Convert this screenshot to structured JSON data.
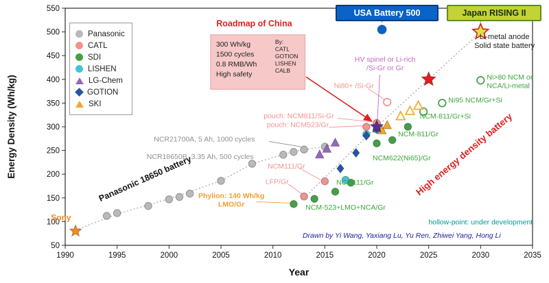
{
  "badges": {
    "usa": {
      "label": "USA Battery 500",
      "bg": "#0a63c6",
      "border": "#063a78",
      "text": "#ffffff"
    },
    "japan": {
      "label": "Japan RISING II",
      "bg": "#c3d235",
      "border": "#5a8f1d",
      "text": "#17310a"
    }
  },
  "chart_data": {
    "type": "scatter",
    "xlabel": "Year",
    "ylabel": "Energy Density (Wh/kg)",
    "xlim": [
      1990,
      2035
    ],
    "ylim": [
      50,
      550
    ],
    "x_ticks": [
      1990,
      1995,
      2000,
      2005,
      2010,
      2015,
      2020,
      2025,
      2030,
      2035
    ],
    "y_ticks": [
      50,
      100,
      150,
      200,
      250,
      300,
      350,
      400,
      450,
      500,
      550
    ],
    "grid": false,
    "legend": {
      "position": "top-left",
      "items": [
        {
          "label": "Panasonic",
          "marker": "circle",
          "color": "#b9b9b9"
        },
        {
          "label": "CATL",
          "marker": "circle",
          "color": "#f2938e"
        },
        {
          "label": "SDI",
          "marker": "circle",
          "color": "#43a047"
        },
        {
          "label": "LISHEN",
          "marker": "circle",
          "color": "#40c4d9"
        },
        {
          "label": "LG-Chem",
          "marker": "triangle",
          "color": "#9468bd"
        },
        {
          "label": "GOTION",
          "marker": "diamond",
          "color": "#2456a4"
        },
        {
          "label": "SKI",
          "marker": "triangle",
          "color": "#f0a832"
        }
      ]
    },
    "series": [
      {
        "name": "Panasonic",
        "marker": "circle",
        "color": "#b9b9b9",
        "fill": "solid",
        "points": [
          [
            1994,
            112
          ],
          [
            1995,
            118
          ],
          [
            1998,
            133
          ],
          [
            2000,
            147
          ],
          [
            2001,
            152
          ],
          [
            2002,
            159
          ],
          [
            2005,
            186
          ],
          [
            2008,
            222
          ],
          [
            2011,
            241
          ],
          [
            2012,
            247
          ],
          [
            2013,
            252
          ],
          [
            2015,
            258
          ]
        ]
      },
      {
        "name": "CATL",
        "marker": "circle",
        "color": "#f2938e",
        "fill": "solid",
        "points": [
          [
            2013,
            153
          ],
          [
            2015,
            185
          ],
          [
            2019,
            300
          ],
          [
            2020,
            308
          ]
        ]
      },
      {
        "name": "CATL under development",
        "marker": "circle",
        "color": "#f2938e",
        "fill": "hollow",
        "points": [
          [
            2021,
            352
          ]
        ]
      },
      {
        "name": "SDI",
        "marker": "circle",
        "color": "#43a047",
        "fill": "solid",
        "points": [
          [
            2012,
            137
          ],
          [
            2014,
            148
          ],
          [
            2016,
            163
          ],
          [
            2017.5,
            182
          ],
          [
            2020,
            265
          ],
          [
            2021.5,
            272
          ],
          [
            2023,
            300
          ]
        ]
      },
      {
        "name": "SDI under development",
        "marker": "circle",
        "color": "#43a047",
        "fill": "hollow",
        "points": [
          [
            2024.5,
            332
          ],
          [
            2026.3,
            350
          ],
          [
            2030,
            398
          ]
        ]
      },
      {
        "name": "LISHEN",
        "marker": "circle",
        "color": "#40c4d9",
        "fill": "solid",
        "points": [
          [
            2017,
            188
          ],
          [
            2019,
            284
          ],
          [
            2020,
            294
          ]
        ]
      },
      {
        "name": "LG-Chem",
        "marker": "triangle",
        "color": "#9468bd",
        "fill": "solid",
        "points": [
          [
            2014.5,
            241
          ],
          [
            2015.2,
            253
          ],
          [
            2016,
            266
          ]
        ]
      },
      {
        "name": "GOTION",
        "marker": "diamond",
        "color": "#2456a4",
        "fill": "solid",
        "points": [
          [
            2016.5,
            212
          ],
          [
            2018,
            245
          ],
          [
            2019,
            281
          ],
          [
            2020,
            296
          ]
        ]
      },
      {
        "name": "SKI",
        "marker": "triangle",
        "color": "#f0a832",
        "fill": "solid",
        "points": [
          [
            2020.5,
            292
          ],
          [
            2021,
            303
          ]
        ]
      },
      {
        "name": "SKI under development",
        "marker": "triangle",
        "color": "#f0a832",
        "fill": "hollow",
        "points": [
          [
            2022.3,
            322
          ],
          [
            2023.2,
            333
          ],
          [
            2024,
            344
          ]
        ]
      },
      {
        "name": "Sony first Li-ion",
        "marker": "star",
        "color": "#f08a24",
        "fill": "solid",
        "size": 9,
        "points": [
          [
            1991,
            80
          ]
        ]
      },
      {
        "name": "China roadmap 2020 target",
        "marker": "star",
        "color": "#5d2f91",
        "fill": "solid",
        "size": 10,
        "points": [
          [
            2020,
            300
          ]
        ]
      },
      {
        "name": "China roadmap 2025 target",
        "marker": "star",
        "color": "#e01f1f",
        "fill": "solid",
        "size": 11,
        "points": [
          [
            2025,
            400
          ]
        ]
      },
      {
        "name": "Japan RISING II target",
        "marker": "star",
        "color": "#dce24a",
        "stroke": "#d42020",
        "fill": "solid",
        "size": 12,
        "points": [
          [
            2030,
            500
          ]
        ]
      },
      {
        "name": "USA Battery 500 target",
        "marker": "circle",
        "color": "#0a63c6",
        "fill": "solid",
        "size": 6.5,
        "points": [
          [
            2020.5,
            505
          ]
        ]
      }
    ],
    "trend_lines": [
      {
        "name": "panasonic-18650-trend",
        "color": "#aaaaaa",
        "style": "dotted",
        "points": [
          [
            1991,
            82
          ],
          [
            1995,
            116
          ],
          [
            2000,
            148
          ],
          [
            2005,
            186
          ],
          [
            2008,
            222
          ],
          [
            2012,
            248
          ],
          [
            2016,
            262
          ]
        ]
      },
      {
        "name": "high-energy-density-trend",
        "color": "#aaaaaa",
        "style": "dotted",
        "points": [
          [
            2013,
            150
          ],
          [
            2020,
            300
          ],
          [
            2025,
            400
          ],
          [
            2030,
            500
          ]
        ]
      },
      {
        "name": "usa-badge-connector",
        "color": "#0a63c6",
        "style": "dashed",
        "points": [
          [
            2020.5,
            528
          ],
          [
            2020.5,
            513
          ]
        ]
      },
      {
        "name": "japan-badge-connector",
        "color": "#8aa22a",
        "style": "dashed",
        "points": [
          [
            2030,
            528
          ],
          [
            2030,
            512
          ]
        ]
      }
    ],
    "leaders": [
      {
        "color": "#8f8f8f",
        "from": [
          2009.6,
          269
        ],
        "to": [
          2012.7,
          258
        ]
      },
      {
        "color": "#f2938e",
        "from": [
          2016.2,
          318
        ],
        "to": [
          2019.6,
          310
        ]
      },
      {
        "color": "#f2938e",
        "from": [
          2015.4,
          299
        ],
        "to": [
          2018.8,
          302
        ]
      },
      {
        "color": "#f2938e",
        "from": [
          2012.6,
          212
        ],
        "to": [
          2014.6,
          188
        ]
      },
      {
        "color": "#f2938e",
        "from": [
          2011.5,
          179
        ],
        "to": [
          2012.8,
          158
        ]
      },
      {
        "color": "#f0a030",
        "from": [
          2008.4,
          142
        ],
        "to": [
          2011.8,
          139
        ]
      },
      {
        "color": "#f2938e",
        "from": [
          2019.2,
          380
        ],
        "to": [
          2020.7,
          358
        ]
      },
      {
        "color": "#c46ac4",
        "from": [
          2020.3,
          410
        ],
        "to": [
          2020.05,
          312
        ]
      }
    ],
    "arrow": {
      "color": "#e01f1f",
      "from": [
        2013.2,
        405
      ],
      "to": [
        2019.5,
        312
      ]
    },
    "roadmap_box": {
      "x1": 2004,
      "y1": 379,
      "x2": 2013.1,
      "y2": 494,
      "fill": "#f6c8c8",
      "border": "#e8a0a0",
      "lines_left": [
        "300 Wh/kg",
        "1500 cycles",
        "0.8 RMB/Wh",
        "High safety"
      ],
      "lines_right": [
        "By:",
        "CATL",
        "GOTION",
        "LISHEN",
        "CALB"
      ]
    },
    "annotations": [
      {
        "text": [
          "Sony"
        ],
        "x": 1989.6,
        "y": 103,
        "color": "#f08a24",
        "size": 12,
        "weight": "bold",
        "anchor": "middle"
      },
      {
        "text": [
          "Panasonic 18650 battery"
        ],
        "x": 1997.8,
        "y": 185,
        "color": "#111111",
        "size": 12.5,
        "weight": "bold",
        "rotate": -24,
        "anchor": "middle"
      },
      {
        "text": [
          "NCR21700A, 5 Ah, 1000 cycles"
        ],
        "x": 2003.4,
        "y": 269,
        "color": "#8f8f8f",
        "size": 10.5,
        "anchor": "middle"
      },
      {
        "text": [
          "NCR18650B, 3.35 Ah, 500 cycles"
        ],
        "x": 2003,
        "y": 232,
        "color": "#8f8f8f",
        "size": 10.5,
        "anchor": "middle"
      },
      {
        "text": [
          "Roadmap of China"
        ],
        "x": 2008.2,
        "y": 512,
        "color": "#e01f1f",
        "size": 12.5,
        "weight": "bold",
        "anchor": "middle"
      },
      {
        "text": [
          "pouch: NCM811/Si-Gr"
        ],
        "x": 2012.5,
        "y": 318,
        "color": "#f2938e",
        "size": 10.5,
        "anchor": "middle"
      },
      {
        "text": [
          "pouch: NCM523/Gr"
        ],
        "x": 2012.4,
        "y": 299,
        "color": "#f2938e",
        "size": 10.5,
        "anchor": "middle"
      },
      {
        "text": [
          "NCM111/Gr"
        ],
        "x": 2011.3,
        "y": 212,
        "color": "#f2938e",
        "size": 10.5,
        "anchor": "middle"
      },
      {
        "text": [
          "LFP/Gr"
        ],
        "x": 2010.4,
        "y": 179,
        "color": "#f2938e",
        "size": 10.5,
        "anchor": "middle"
      },
      {
        "text": [
          "Phylion: 140 Wh/kg",
          "LMO/Gr"
        ],
        "x": 2006,
        "y": 150,
        "color": "#f0a030",
        "size": 10.5,
        "weight": "bold",
        "anchor": "middle"
      },
      {
        "text": [
          "NCM-523+LMO+NCA/Gr"
        ],
        "x": 2017,
        "y": 125,
        "color": "#3aa63a",
        "size": 10.5,
        "anchor": "middle"
      },
      {
        "text": [
          "NCM111/Gr"
        ],
        "x": 2017.9,
        "y": 178,
        "color": "#3aa63a",
        "size": 10.5,
        "anchor": "middle"
      },
      {
        "text": [
          "NCM622(Ni65)/Gr"
        ],
        "x": 2022.4,
        "y": 229,
        "color": "#3aa63a",
        "size": 10.5,
        "anchor": "middle"
      },
      {
        "text": [
          "NCM-811/Gr"
        ],
        "x": 2024,
        "y": 280,
        "color": "#3aa63a",
        "size": 10.5,
        "anchor": "middle"
      },
      {
        "text": [
          "NCM-811/Gr+Si"
        ],
        "x": 2026.6,
        "y": 317,
        "color": "#3aa63a",
        "size": 10.5,
        "anchor": "middle"
      },
      {
        "text": [
          "Ni95 NCM/Gr+Si"
        ],
        "x": 2026.9,
        "y": 351,
        "color": "#3aa63a",
        "size": 10.5,
        "anchor": "start"
      },
      {
        "text": [
          "Ni>80 NCM or",
          "NCA/Li-metal"
        ],
        "x": 2030.6,
        "y": 400,
        "color": "#3aa63a",
        "size": 10.5,
        "anchor": "start"
      },
      {
        "text": [
          "Ni80+ /Si-Gr"
        ],
        "x": 2017.8,
        "y": 382,
        "color": "#f2938e",
        "size": 10.5,
        "anchor": "middle"
      },
      {
        "text": [
          "HV spinel or Li-rich",
          "/Si-Gr or Gr"
        ],
        "x": 2020.8,
        "y": 437,
        "color": "#c46ac4",
        "size": 10.5,
        "anchor": "middle"
      },
      {
        "text": [
          "Li-metal anode",
          "Solid state battery"
        ],
        "x": 2032.3,
        "y": 485,
        "color": "#222222",
        "size": 11,
        "anchor": "middle"
      },
      {
        "text": [
          "High energy density battery"
        ],
        "x": 2028.6,
        "y": 237,
        "color": "#e01f1f",
        "size": 13.5,
        "weight": "bold",
        "rotate": -40,
        "anchor": "middle"
      },
      {
        "text": [
          "hollow-point: under development"
        ],
        "x": 2030,
        "y": 94,
        "color": "#009898",
        "size": 10.5,
        "anchor": "middle"
      },
      {
        "text": [
          "Drawn by Yi Wang, Yaxiang Lu, Yu Ren, Zhiwei Yang, Hong Li"
        ],
        "x": 2022.4,
        "y": 66,
        "color": "#20209a",
        "size": 10.5,
        "style": "italic",
        "anchor": "middle"
      }
    ]
  }
}
